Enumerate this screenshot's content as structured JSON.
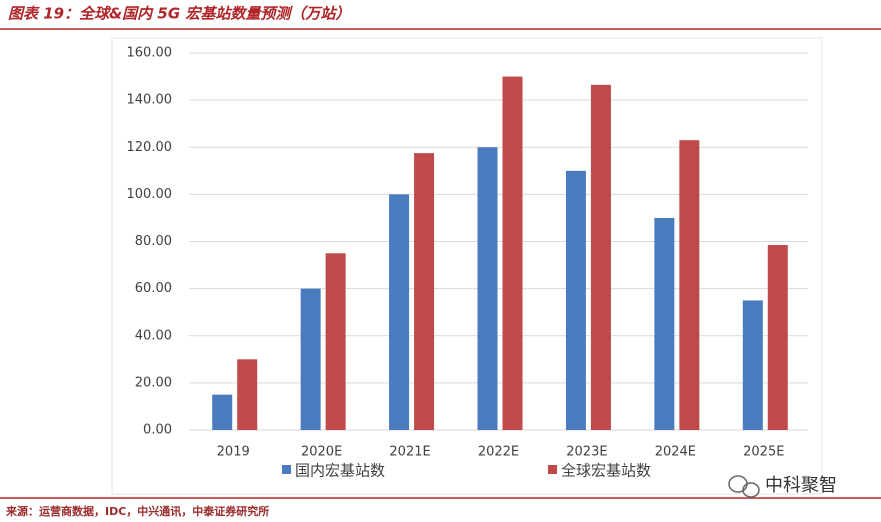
{
  "chart_data": {
    "type": "bar",
    "title": "图表 19：全球&国内 5G 宏基站数量预测（万站）",
    "source": "来源：运营商数据，IDC，中兴通讯，中泰证券研究所",
    "categories": [
      "2019",
      "2020E",
      "2021E",
      "2022E",
      "2023E",
      "2024E",
      "2025E"
    ],
    "series": [
      {
        "name": "国内宏基站数",
        "color": "#4a7bbf",
        "values": [
          15,
          60,
          100,
          120,
          110,
          90,
          55
        ]
      },
      {
        "name": "全球宏基站数",
        "color": "#c0494a",
        "values": [
          30,
          75,
          117.5,
          150,
          146.5,
          123,
          78.5
        ]
      }
    ],
    "ylim": [
      0,
      160
    ],
    "yticks": [
      {
        "value": 0,
        "label": "0.00"
      },
      {
        "value": 20,
        "label": "20.00"
      },
      {
        "value": 40,
        "label": "40.00"
      },
      {
        "value": 60,
        "label": "60.00"
      },
      {
        "value": 80,
        "label": "80.00"
      },
      {
        "value": 100,
        "label": "100.00"
      },
      {
        "value": 120,
        "label": "120.00"
      },
      {
        "value": 140,
        "label": "140.00"
      },
      {
        "value": 160,
        "label": "160.00"
      }
    ],
    "grid": true
  },
  "watermark": "中科聚智"
}
